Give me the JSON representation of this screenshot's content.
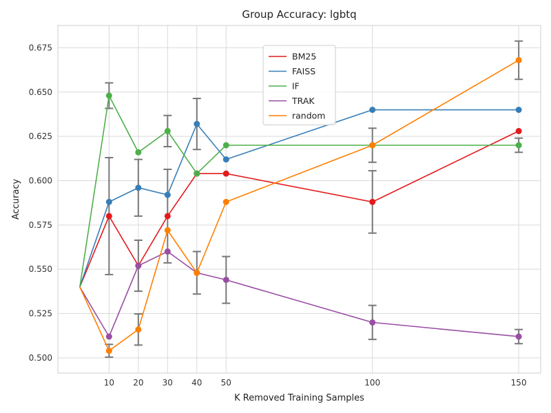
{
  "chart_data": {
    "type": "line",
    "title": "Group Accuracy: lgbtq",
    "xlabel": "K Removed Training Samples",
    "ylabel": "Accuracy",
    "x": [
      0,
      10,
      20,
      30,
      40,
      50,
      100,
      150
    ],
    "x_tick_labels": [
      "10",
      "20",
      "30",
      "40",
      "50",
      "100",
      "150"
    ],
    "x_ticks": [
      10,
      20,
      30,
      40,
      50,
      100,
      150
    ],
    "xlim": [
      -7.5,
      157.5
    ],
    "ylim": [
      0.4914,
      0.6876
    ],
    "y_ticks": [
      0.5,
      0.525,
      0.55,
      0.575,
      0.6,
      0.625,
      0.65,
      0.675
    ],
    "y_tick_labels": [
      "0.500",
      "0.525",
      "0.550",
      "0.575",
      "0.600",
      "0.625",
      "0.650",
      "0.675"
    ],
    "grid": true,
    "legend_position": "top-center",
    "series": [
      {
        "name": "BM25",
        "color": "#e41a1c",
        "values": [
          0.54,
          0.58,
          0.552,
          0.58,
          0.604,
          0.604,
          0.588,
          0.628
        ],
        "err": [
          0,
          0.033,
          0.0,
          0.0264,
          0.0,
          0.0,
          0.0176,
          0.0
        ]
      },
      {
        "name": "FAISS",
        "color": "#377eb8",
        "values": [
          0.54,
          0.588,
          0.596,
          0.592,
          0.632,
          0.612,
          0.64,
          0.64
        ],
        "err": [
          0,
          0.0,
          0.016,
          0.0,
          0.0144,
          0.0,
          0.0,
          0.0
        ]
      },
      {
        "name": "IF",
        "color": "#4daf4a",
        "values": [
          0.54,
          0.648,
          0.616,
          0.628,
          0.604,
          0.62,
          0.62,
          0.62
        ],
        "err": [
          0,
          0.0072,
          0.0,
          0.0088,
          0.0,
          0.0,
          0.0,
          0.004
        ]
      },
      {
        "name": "TRAK",
        "color": "#984ea3",
        "values": [
          0.54,
          0.512,
          0.552,
          0.56,
          0.548,
          0.544,
          0.52,
          0.512
        ],
        "err": [
          0,
          0.0,
          0.0144,
          0.0,
          0.012,
          0.0132,
          0.0096,
          0.004
        ]
      },
      {
        "name": "random",
        "color": "#ff7f00",
        "values": [
          0.54,
          0.504,
          0.516,
          0.572,
          0.548,
          0.588,
          0.62,
          0.668
        ],
        "err": [
          0,
          0.0036,
          0.0088,
          0.0,
          0.0,
          0.0,
          0.0096,
          0.0108
        ]
      }
    ]
  }
}
